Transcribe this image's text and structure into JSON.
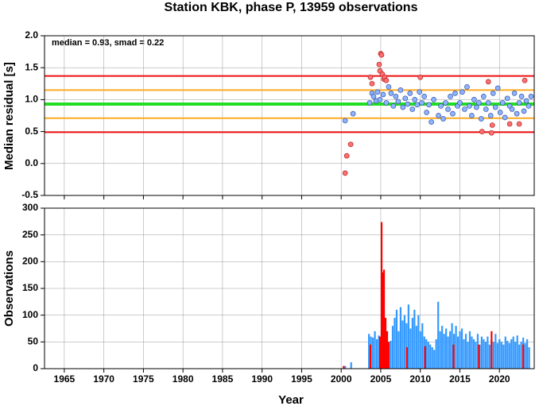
{
  "chart_data": [
    {
      "type": "scatter",
      "title": "Station KBK, phase P, 13959 observations",
      "annotation": "median = 0.93, smad = 0.22",
      "ylabel": "Median residual [s]",
      "xlim": [
        1962.5,
        2024.4
      ],
      "ylim": [
        -0.5,
        2.0
      ],
      "xticks": [
        1965,
        1970,
        1975,
        1980,
        1985,
        1990,
        1995,
        2000,
        2005,
        2010,
        2015,
        2020
      ],
      "yticks": [
        -0.5,
        {
          "value": 0,
          "label": "0.0"
        },
        0.5,
        {
          "value": 1,
          "label": "1.0"
        },
        1.5,
        {
          "value": 2,
          "label": "2.0"
        }
      ],
      "grid": true,
      "hlines": [
        {
          "value": 1.37,
          "color": "#ee1111"
        },
        {
          "value": 1.15,
          "color": "#ffaa22"
        },
        {
          "value": 0.93,
          "color": "#22dd22"
        },
        {
          "value": 0.71,
          "color": "#ffaa22"
        },
        {
          "value": 0.49,
          "color": "#ee1111"
        }
      ],
      "series": [
        {
          "color": "#8fb4ff",
          "edgecolor": "#3050a0",
          "x": [
            2000.5,
            2001.5,
            2003.6,
            2003.9,
            2004.1,
            2004.4,
            2004.6,
            2004.9,
            2005.3,
            2005.7,
            2006.0,
            2006.3,
            2006.6,
            2006.9,
            2007.2,
            2007.5,
            2007.8,
            2008.1,
            2008.4,
            2008.7,
            2009.0,
            2009.3,
            2009.6,
            2009.9,
            2010.2,
            2010.5,
            2010.8,
            2011.1,
            2011.4,
            2011.7,
            2012.3,
            2012.6,
            2012.9,
            2013.2,
            2013.5,
            2013.8,
            2014.1,
            2014.4,
            2014.7,
            2015.0,
            2015.3,
            2015.6,
            2015.9,
            2016.2,
            2016.5,
            2016.8,
            2017.1,
            2017.4,
            2017.7,
            2018.0,
            2018.3,
            2018.6,
            2018.9,
            2019.2,
            2019.5,
            2019.8,
            2020.1,
            2020.4,
            2020.7,
            2021.0,
            2021.3,
            2021.6,
            2021.9,
            2022.2,
            2022.5,
            2022.8,
            2023.1,
            2023.4,
            2023.7,
            2024.0
          ],
          "y": [
            0.67,
            0.78,
            0.95,
            1.1,
            1.05,
            0.98,
            1.12,
            1.0,
            1.08,
            0.95,
            1.2,
            1.1,
            0.9,
            1.05,
            0.97,
            1.15,
            0.88,
            1.02,
            0.93,
            1.1,
            0.85,
            1.0,
            0.92,
            1.12,
            0.95,
            1.05,
            0.8,
            0.92,
            0.65,
            1.0,
            0.75,
            0.9,
            0.7,
            0.95,
            0.85,
            1.05,
            0.78,
            1.1,
            0.9,
            0.95,
            1.12,
            0.85,
            1.2,
            0.9,
            0.75,
            1.0,
            0.88,
            0.95,
            0.7,
            1.05,
            0.85,
            0.95,
            0.75,
            1.1,
            0.88,
            1.18,
            0.8,
            0.95,
            0.72,
            1.02,
            0.9,
            0.85,
            1.1,
            0.78,
            0.95,
            1.05,
            0.82,
            0.98,
            0.9,
            1.05
          ]
        },
        {
          "color": "#ff7070",
          "edgecolor": "#b02020",
          "x": [
            2000.5,
            2000.7,
            2001.2,
            2003.7,
            2003.9,
            2004.8,
            2004.9,
            2005.0,
            2005.1,
            2005.2,
            2005.4,
            2005.5,
            2005.7,
            2010.0,
            2017.8,
            2018.6,
            2019.0,
            2019.1,
            2021.3,
            2022.5,
            2023.2
          ],
          "y": [
            -0.15,
            0.12,
            0.3,
            1.35,
            1.25,
            1.55,
            1.45,
            1.72,
            1.7,
            1.4,
            1.32,
            1.35,
            1.3,
            1.35,
            0.5,
            1.28,
            0.48,
            0.6,
            0.62,
            0.62,
            1.3
          ]
        }
      ]
    },
    {
      "type": "bar",
      "ylabel": "Observations",
      "xlabel": "Year",
      "xlim": [
        1962.5,
        2024.4
      ],
      "ylim": [
        0,
        300
      ],
      "xticks": [
        1965,
        1970,
        1975,
        1980,
        1985,
        1990,
        1995,
        2000,
        2005,
        2010,
        2015,
        2020
      ],
      "yticks": [
        0,
        50,
        100,
        150,
        200,
        250,
        300
      ],
      "grid": true,
      "series": [
        {
          "color": "#3399ff",
          "x": [
            2000.5,
            2001.25,
            2003.5,
            2003.75,
            2004,
            2004.25,
            2004.5,
            2004.75,
            2005,
            2005.25,
            2005.5,
            2005.75,
            2006,
            2006.25,
            2006.5,
            2006.75,
            2007,
            2007.25,
            2007.5,
            2007.75,
            2008,
            2008.25,
            2008.5,
            2008.75,
            2009,
            2009.25,
            2009.5,
            2009.75,
            2010,
            2010.25,
            2010.5,
            2010.75,
            2011,
            2011.25,
            2011.5,
            2011.75,
            2012,
            2012.25,
            2012.5,
            2012.75,
            2013,
            2013.25,
            2013.5,
            2013.75,
            2014,
            2014.25,
            2014.5,
            2014.75,
            2015,
            2015.25,
            2015.5,
            2015.75,
            2016,
            2016.25,
            2016.5,
            2016.75,
            2017,
            2017.25,
            2017.5,
            2017.75,
            2018,
            2018.25,
            2018.5,
            2018.75,
            2019,
            2019.25,
            2019.5,
            2019.75,
            2020,
            2020.25,
            2020.5,
            2020.75,
            2021,
            2021.25,
            2021.5,
            2021.75,
            2022,
            2022.25,
            2022.5,
            2022.75,
            2023,
            2023.25,
            2023.5,
            2023.75
          ],
          "values": [
            5,
            12,
            65,
            60,
            58,
            70,
            55,
            62,
            50,
            45,
            55,
            60,
            48,
            52,
            80,
            95,
            110,
            70,
            115,
            90,
            100,
            85,
            120,
            75,
            95,
            110,
            80,
            100,
            70,
            85,
            60,
            55,
            50,
            45,
            40,
            35,
            55,
            125,
            70,
            80,
            65,
            75,
            60,
            70,
            85,
            65,
            80,
            60,
            70,
            75,
            55,
            65,
            50,
            70,
            60,
            55,
            50,
            65,
            45,
            60,
            55,
            50,
            60,
            45,
            55,
            50,
            65,
            48,
            55,
            50,
            45,
            60,
            52,
            48,
            55,
            60,
            50,
            62,
            45,
            50,
            58,
            48,
            55,
            40
          ]
        },
        {
          "color": "#ff0000",
          "x": [
            2000.3,
            2003.7,
            2004.9,
            2005.1,
            2005.2,
            2005.4,
            2005.6,
            2005.8,
            2006.0,
            2008.3,
            2010.6,
            2014.2,
            2017.4,
            2019.0,
            2023.0
          ],
          "values": [
            5,
            45,
            60,
            274,
            180,
            185,
            95,
            70,
            50,
            40,
            42,
            45,
            45,
            70,
            45
          ]
        }
      ]
    }
  ]
}
